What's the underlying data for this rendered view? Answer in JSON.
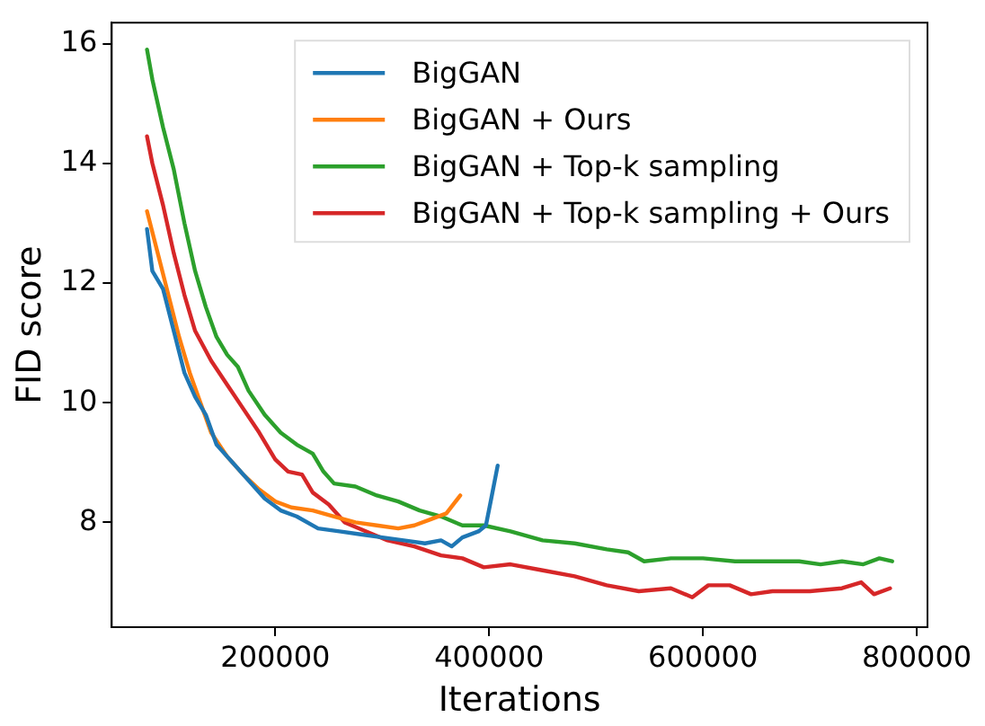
{
  "chart_data": {
    "type": "line",
    "xlabel": "Iterations",
    "ylabel": "FID score",
    "xlim": [
      47000,
      810000
    ],
    "xticks": [
      200000,
      400000,
      600000,
      800000
    ],
    "ylim": [
      6.25,
      16.35
    ],
    "yticks": [
      8,
      10,
      12,
      14,
      16
    ],
    "grid": false,
    "legend": "top right",
    "marker": "none",
    "line_style": "solid",
    "series": [
      {
        "name": "BigGAN",
        "color": "#1f77b4",
        "x": [
          80000,
          85000,
          95000,
          105000,
          115000,
          125000,
          135000,
          145000,
          160000,
          175000,
          190000,
          205000,
          220000,
          240000,
          260000,
          280000,
          300000,
          320000,
          340000,
          355000,
          365000,
          375000,
          390000,
          397000,
          402000,
          408000
        ],
        "values": [
          12.9,
          12.2,
          11.9,
          11.2,
          10.5,
          10.1,
          9.8,
          9.3,
          9.0,
          8.7,
          8.4,
          8.2,
          8.1,
          7.9,
          7.85,
          7.8,
          7.75,
          7.7,
          7.65,
          7.7,
          7.6,
          7.75,
          7.85,
          7.95,
          8.4,
          8.95
        ]
      },
      {
        "name": "BigGAN + Ours",
        "color": "#ff7f0e",
        "x": [
          80000,
          90000,
          100000,
          110000,
          120000,
          130000,
          140000,
          155000,
          170000,
          185000,
          200000,
          215000,
          235000,
          255000,
          275000,
          295000,
          315000,
          330000,
          345000,
          360000,
          373000
        ],
        "values": [
          13.2,
          12.5,
          11.8,
          11.1,
          10.5,
          10.0,
          9.5,
          9.1,
          8.8,
          8.55,
          8.35,
          8.25,
          8.2,
          8.1,
          8.0,
          7.95,
          7.9,
          7.95,
          8.05,
          8.15,
          8.45
        ]
      },
      {
        "name": "BigGAN + Top-k sampling",
        "color": "#2ca02c",
        "x": [
          80000,
          85000,
          95000,
          105000,
          115000,
          125000,
          135000,
          145000,
          155000,
          165000,
          175000,
          190000,
          205000,
          220000,
          235000,
          245000,
          255000,
          275000,
          295000,
          315000,
          335000,
          355000,
          375000,
          395000,
          420000,
          450000,
          480000,
          510000,
          530000,
          545000,
          570000,
          600000,
          630000,
          660000,
          690000,
          710000,
          730000,
          750000,
          765000,
          777000
        ],
        "values": [
          15.9,
          15.4,
          14.6,
          13.9,
          13.0,
          12.2,
          11.6,
          11.1,
          10.8,
          10.6,
          10.2,
          9.8,
          9.5,
          9.3,
          9.15,
          8.85,
          8.65,
          8.6,
          8.45,
          8.35,
          8.2,
          8.1,
          7.95,
          7.95,
          7.85,
          7.7,
          7.65,
          7.55,
          7.5,
          7.35,
          7.4,
          7.4,
          7.35,
          7.35,
          7.35,
          7.3,
          7.35,
          7.3,
          7.4,
          7.35
        ]
      },
      {
        "name": "BigGAN + Top-k sampling + Ours",
        "color": "#d62728",
        "x": [
          80000,
          85000,
          95000,
          105000,
          115000,
          125000,
          140000,
          155000,
          170000,
          185000,
          200000,
          212000,
          225000,
          235000,
          250000,
          265000,
          285000,
          305000,
          330000,
          355000,
          375000,
          395000,
          420000,
          450000,
          480000,
          510000,
          540000,
          570000,
          590000,
          605000,
          625000,
          645000,
          665000,
          700000,
          730000,
          748000,
          760000,
          775000
        ],
        "values": [
          14.45,
          14.0,
          13.3,
          12.5,
          11.8,
          11.2,
          10.7,
          10.3,
          9.9,
          9.5,
          9.05,
          8.85,
          8.8,
          8.5,
          8.3,
          8.0,
          7.85,
          7.7,
          7.6,
          7.45,
          7.4,
          7.25,
          7.3,
          7.2,
          7.1,
          6.95,
          6.85,
          6.9,
          6.75,
          6.95,
          6.95,
          6.8,
          6.85,
          6.85,
          6.9,
          7.0,
          6.8,
          6.9
        ]
      }
    ]
  }
}
